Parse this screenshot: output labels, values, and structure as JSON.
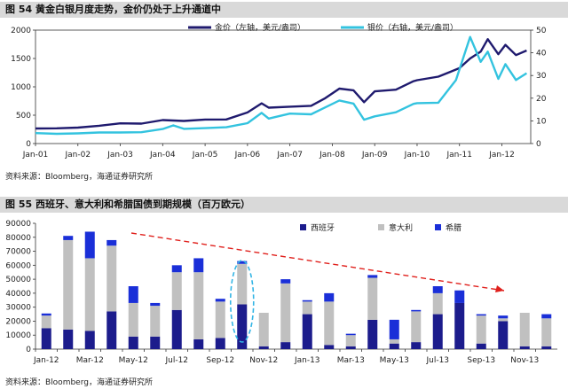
{
  "figures": [
    {
      "title": "图 54  黄金白银月度走势，金价仍处于上升通道中",
      "source": "资料来源：Bloomberg，海通证券研究所"
    },
    {
      "title": "图 55  西班牙、意大利和希腊国债到期规模（百万欧元）",
      "source": "资料来源：Bloomberg，海通证券研究所"
    }
  ],
  "chart_data": [
    {
      "type": "line",
      "title": "",
      "xlabel": "",
      "ylabel": "",
      "x_ticks": [
        "Jan-01",
        "Jan-02",
        "Jan-03",
        "Jan-04",
        "Jan-05",
        "Jan-06",
        "Jan-07",
        "Jan-08",
        "Jan-09",
        "Jan-10",
        "Jan-11",
        "Jan-12"
      ],
      "ylim_left": [
        0,
        2000
      ],
      "yticks_left": [
        0,
        500,
        1000,
        1500,
        2000
      ],
      "ylim_right": [
        0,
        50
      ],
      "yticks_right": [
        0,
        10,
        20,
        30,
        40,
        50
      ],
      "legend_position": "top-right",
      "colors": {
        "gold": "#1f1a6e",
        "silver": "#33c3df"
      },
      "series": [
        {
          "name": "金价（左轴，美元/盎司）",
          "axis": "left",
          "points": [
            [
              "2001-01",
              265
            ],
            [
              "2001-07",
              268
            ],
            [
              "2002-01",
              281
            ],
            [
              "2002-07",
              314
            ],
            [
              "2003-01",
              356
            ],
            [
              "2003-07",
              351
            ],
            [
              "2004-01",
              414
            ],
            [
              "2004-07",
              398
            ],
            [
              "2005-01",
              424
            ],
            [
              "2005-07",
              425
            ],
            [
              "2006-01",
              549
            ],
            [
              "2006-05",
              710
            ],
            [
              "2006-07",
              633
            ],
            [
              "2007-01",
              650
            ],
            [
              "2007-07",
              665
            ],
            [
              "2007-11",
              800
            ],
            [
              "2008-03",
              968
            ],
            [
              "2008-07",
              939
            ],
            [
              "2008-10",
              730
            ],
            [
              "2009-01",
              920
            ],
            [
              "2009-07",
              950
            ],
            [
              "2009-12",
              1100
            ],
            [
              "2010-01",
              1117
            ],
            [
              "2010-07",
              1180
            ],
            [
              "2011-01",
              1330
            ],
            [
              "2011-04",
              1500
            ],
            [
              "2011-07",
              1620
            ],
            [
              "2011-09",
              1840
            ],
            [
              "2011-12",
              1575
            ],
            [
              "2012-02",
              1740
            ],
            [
              "2012-05",
              1560
            ],
            [
              "2012-08",
              1640
            ]
          ]
        },
        {
          "name": "银价（右轴，美元/盎司）",
          "axis": "right",
          "points": [
            [
              "2001-01",
              4.6
            ],
            [
              "2001-07",
              4.3
            ],
            [
              "2002-01",
              4.5
            ],
            [
              "2002-07",
              4.9
            ],
            [
              "2003-01",
              4.9
            ],
            [
              "2003-07",
              5.0
            ],
            [
              "2004-01",
              6.4
            ],
            [
              "2004-04",
              8.0
            ],
            [
              "2004-07",
              6.5
            ],
            [
              "2005-01",
              6.8
            ],
            [
              "2005-07",
              7.2
            ],
            [
              "2006-01",
              9.0
            ],
            [
              "2006-05",
              13.5
            ],
            [
              "2006-07",
              11.0
            ],
            [
              "2007-01",
              13.2
            ],
            [
              "2007-07",
              12.9
            ],
            [
              "2008-03",
              19.0
            ],
            [
              "2008-07",
              17.6
            ],
            [
              "2008-10",
              10.5
            ],
            [
              "2009-01",
              12.0
            ],
            [
              "2009-07",
              13.8
            ],
            [
              "2009-12",
              17.5
            ],
            [
              "2010-01",
              17.8
            ],
            [
              "2010-07",
              18.0
            ],
            [
              "2010-12",
              28.0
            ],
            [
              "2011-04",
              47.0
            ],
            [
              "2011-07",
              36.0
            ],
            [
              "2011-09",
              40.5
            ],
            [
              "2011-12",
              28.5
            ],
            [
              "2012-02",
              35.0
            ],
            [
              "2012-05",
              28.0
            ],
            [
              "2012-08",
              31.0
            ]
          ]
        }
      ]
    },
    {
      "type": "bar",
      "stacked": true,
      "title": "",
      "xlabel": "",
      "ylabel": "",
      "ylim": [
        0,
        90000
      ],
      "yticks": [
        0,
        10000,
        20000,
        30000,
        40000,
        50000,
        60000,
        70000,
        80000,
        90000
      ],
      "legend_position": "top-right",
      "categories": [
        "Jan-12",
        "Feb-12",
        "Mar-12",
        "Apr-12",
        "May-12",
        "Jun-12",
        "Jul-12",
        "Aug-12",
        "Sep-12",
        "Oct-12",
        "Nov-12",
        "Dec-12",
        "Jan-13",
        "Feb-13",
        "Mar-13",
        "Apr-13",
        "May-13",
        "Jun-13",
        "Jul-13",
        "Aug-13",
        "Sep-13",
        "Oct-13",
        "Nov-13",
        "Dec-13"
      ],
      "x_tick_labels": [
        "Jan-12",
        "Mar-12",
        "May-12",
        "Jul-12",
        "Sep-12",
        "Nov-12",
        "Jan-13",
        "Mar-13",
        "May-13",
        "Jul-13",
        "Sep-13",
        "Nov-13"
      ],
      "colors": {
        "spain": "#1c1c8c",
        "italy": "#c0c0c0",
        "greece": "#1a2fd8"
      },
      "series": [
        {
          "name": "西班牙",
          "values": [
            15000,
            14000,
            13000,
            27000,
            9000,
            9000,
            28000,
            7000,
            8000,
            32000,
            2000,
            5000,
            25000,
            3000,
            2000,
            21000,
            4000,
            5000,
            25000,
            33000,
            4000,
            20000,
            2000,
            2000
          ]
        },
        {
          "name": "意大利",
          "values": [
            9000,
            64000,
            52000,
            47000,
            24000,
            22000,
            27000,
            48000,
            26000,
            29000,
            24000,
            42000,
            9000,
            31000,
            8000,
            30000,
            3000,
            22000,
            15000,
            0,
            20000,
            2000,
            24000,
            20000
          ]
        },
        {
          "name": "希腊",
          "values": [
            1500,
            3000,
            19000,
            4000,
            12000,
            2000,
            5000,
            10000,
            2000,
            2000,
            0,
            3000,
            1000,
            6000,
            1000,
            2000,
            14000,
            1000,
            5000,
            9000,
            1000,
            2000,
            0,
            3000
          ]
        }
      ],
      "annotations": [
        "dashed-arrow-declining-trend",
        "dashed-ellipse-oct-12"
      ]
    }
  ]
}
